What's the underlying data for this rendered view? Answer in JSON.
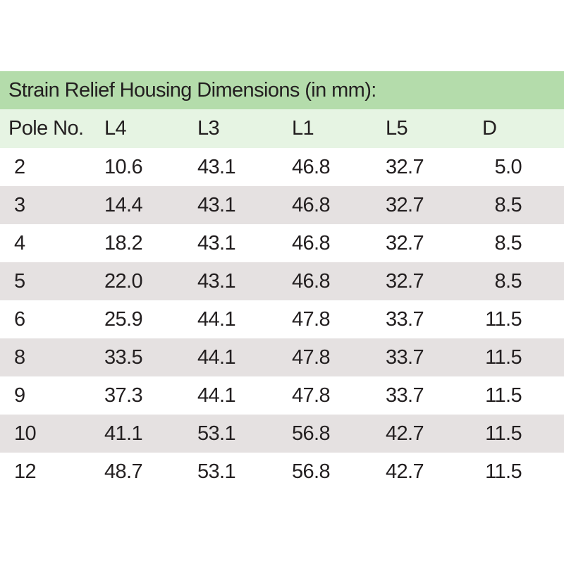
{
  "table": {
    "title": "Strain Relief Housing Dimensions (in mm):",
    "headers": [
      "Pole No.",
      "L4",
      "L3",
      "L1",
      "L5",
      "D"
    ],
    "rows": [
      [
        "2",
        "10.6",
        "43.1",
        "46.8",
        "32.7",
        "5.0"
      ],
      [
        "3",
        "14.4",
        "43.1",
        "46.8",
        "32.7",
        "8.5"
      ],
      [
        "4",
        "18.2",
        "43.1",
        "46.8",
        "32.7",
        "8.5"
      ],
      [
        "5",
        "22.0",
        "43.1",
        "46.8",
        "32.7",
        "8.5"
      ],
      [
        "6",
        "25.9",
        "44.1",
        "47.8",
        "33.7",
        "11.5"
      ],
      [
        "8",
        "33.5",
        "44.1",
        "47.8",
        "33.7",
        "11.5"
      ],
      [
        "9",
        "37.3",
        "44.1",
        "47.8",
        "33.7",
        "11.5"
      ],
      [
        "10",
        "41.1",
        "53.1",
        "56.8",
        "42.7",
        "11.5"
      ],
      [
        "12",
        "48.7",
        "53.1",
        "56.8",
        "42.7",
        "11.5"
      ]
    ]
  },
  "colors": {
    "title_background": "#b4dcab",
    "header_background": "#e6f4e3",
    "shaded_row_background": "#e5e1e1",
    "text": "#231f20"
  }
}
